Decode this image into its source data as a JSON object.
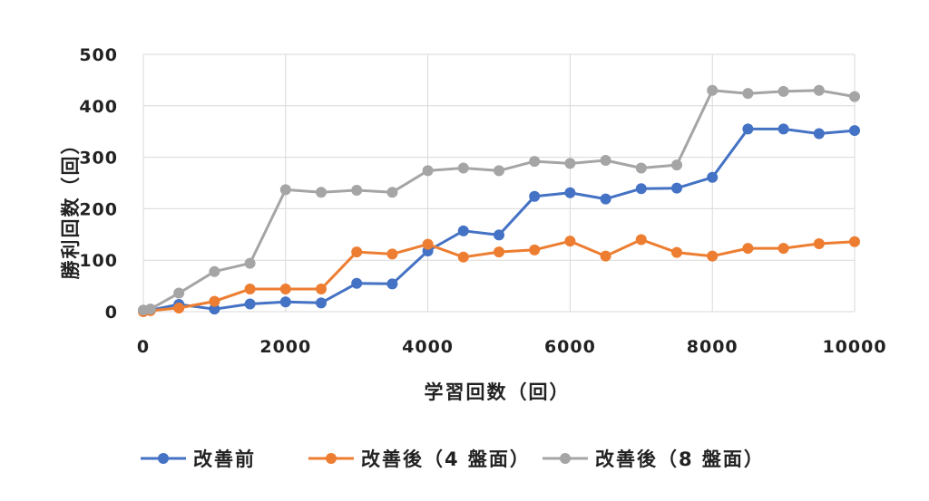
{
  "chart_data": {
    "type": "line",
    "xlabel": "学習回数（回）",
    "ylabel": "勝利回数（回）",
    "xlim": [
      0,
      10000
    ],
    "ylim": [
      0,
      500
    ],
    "xticks": [
      "0",
      "2000",
      "4000",
      "6000",
      "8000",
      "10000"
    ],
    "yticks": [
      "0",
      "100",
      "200",
      "300",
      "400",
      "500"
    ],
    "grid": true,
    "legend_position": "bottom",
    "series": [
      {
        "name": "改善前",
        "color": "#4472C4",
        "points": [
          [
            0,
            2
          ],
          [
            100,
            3
          ],
          [
            500,
            14
          ],
          [
            1000,
            5
          ],
          [
            1500,
            15
          ],
          [
            2000,
            19
          ],
          [
            2500,
            17
          ],
          [
            3000,
            55
          ],
          [
            3500,
            54
          ],
          [
            4000,
            118
          ],
          [
            4500,
            157
          ],
          [
            5000,
            149
          ],
          [
            5500,
            224
          ],
          [
            6000,
            231
          ],
          [
            6500,
            219
          ],
          [
            7000,
            239
          ],
          [
            7500,
            240
          ],
          [
            8000,
            261
          ],
          [
            8500,
            355
          ],
          [
            9000,
            355
          ],
          [
            9500,
            346
          ],
          [
            10000,
            352
          ]
        ]
      },
      {
        "name": "改善後（4 盤面）",
        "color": "#ED7D31",
        "points": [
          [
            0,
            0
          ],
          [
            100,
            2
          ],
          [
            500,
            7
          ],
          [
            1000,
            20
          ],
          [
            1500,
            44
          ],
          [
            2000,
            44
          ],
          [
            2500,
            44
          ],
          [
            3000,
            116
          ],
          [
            3500,
            112
          ],
          [
            4000,
            131
          ],
          [
            4500,
            106
          ],
          [
            5000,
            116
          ],
          [
            5500,
            120
          ],
          [
            6000,
            137
          ],
          [
            6500,
            108
          ],
          [
            7000,
            140
          ],
          [
            7500,
            115
          ],
          [
            8000,
            108
          ],
          [
            8500,
            123
          ],
          [
            9000,
            123
          ],
          [
            9500,
            132
          ],
          [
            10000,
            136
          ]
        ]
      },
      {
        "name": "改善後（8 盤面）",
        "color": "#A5A5A5",
        "points": [
          [
            0,
            3
          ],
          [
            100,
            5
          ],
          [
            500,
            36
          ],
          [
            1000,
            78
          ],
          [
            1500,
            94
          ],
          [
            2000,
            237
          ],
          [
            2500,
            232
          ],
          [
            3000,
            236
          ],
          [
            3500,
            232
          ],
          [
            4000,
            274
          ],
          [
            4500,
            279
          ],
          [
            5000,
            274
          ],
          [
            5500,
            292
          ],
          [
            6000,
            288
          ],
          [
            6500,
            294
          ],
          [
            7000,
            279
          ],
          [
            7500,
            285
          ],
          [
            8000,
            430
          ],
          [
            8500,
            424
          ],
          [
            9000,
            428
          ],
          [
            9500,
            430
          ],
          [
            10000,
            418
          ]
        ]
      }
    ]
  }
}
